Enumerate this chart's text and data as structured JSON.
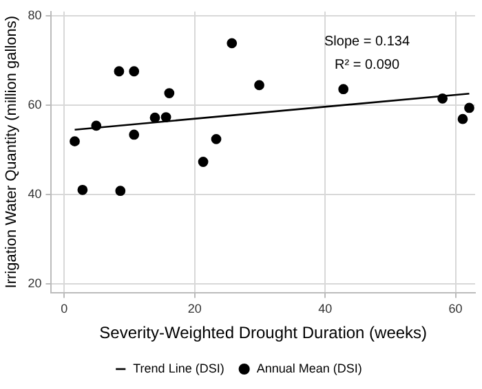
{
  "chart_data": {
    "type": "scatter",
    "xlabel": "Severity-Weighted Drought Duration (weeks)",
    "ylabel": "Irrigation Water Quantity (million gallons)",
    "xlim": [
      -2,
      63
    ],
    "ylim": [
      18,
      81
    ],
    "xticks": [
      0,
      20,
      40,
      60
    ],
    "yticks": [
      20,
      40,
      60,
      80
    ],
    "grid": true,
    "legend": "bottom",
    "annotations": [
      "Slope = 0.134",
      "R² = 0.090"
    ],
    "series": [
      {
        "name": "Trend Line (DSI)",
        "type": "line",
        "color": "#000000",
        "line_style": "solid",
        "x": [
          1.6,
          62.1
        ],
        "values": [
          54.5,
          62.6
        ]
      },
      {
        "name": "Annual Mean (DSI)",
        "marker": "circle",
        "color": "#000000",
        "x": [
          1.6,
          2.8,
          4.9,
          8.4,
          8.6,
          10.7,
          10.7,
          13.9,
          15.6,
          16.1,
          21.3,
          23.3,
          25.7,
          29.9,
          42.8,
          58.0,
          61.1,
          62.1
        ],
        "values": [
          51.9,
          41.0,
          55.4,
          67.6,
          40.8,
          67.6,
          53.4,
          57.2,
          57.3,
          62.7,
          47.3,
          52.4,
          73.9,
          64.5,
          63.6,
          61.5,
          56.9,
          59.4
        ]
      }
    ]
  }
}
